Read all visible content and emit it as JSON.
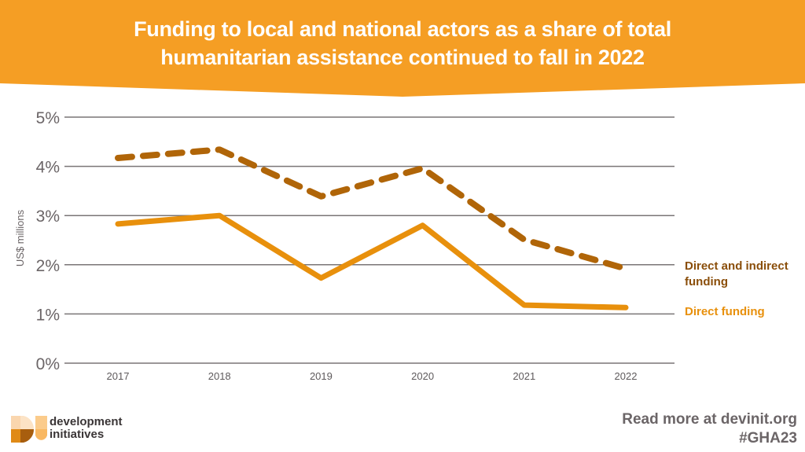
{
  "colors": {
    "banner": "#F59E24",
    "direct_and_indirect": "#B06508",
    "direct": "#E8900C",
    "grid": "#7a7576",
    "tick_text": "#6b6567"
  },
  "header": {
    "title_line1": "Funding to local and national actors as a share of total",
    "title_line2": "humanitarian assistance continued to fall in 2022"
  },
  "chart_data": {
    "type": "line",
    "title": "Funding to local and national actors as a share of total humanitarian assistance continued to fall in 2022",
    "xlabel": "",
    "ylabel": "US$ millions",
    "categories": [
      "2017",
      "2018",
      "2019",
      "2020",
      "2021",
      "2022"
    ],
    "yticks": [
      "0%",
      "1%",
      "2%",
      "3%",
      "4%",
      "5%"
    ],
    "ylim": [
      0,
      5
    ],
    "grid": true,
    "legend_placement": "right (inline labels at line ends)",
    "series": [
      {
        "name": "Direct and indirect funding",
        "style": "dashed",
        "values": [
          4.17,
          4.34,
          3.39,
          3.96,
          2.51,
          1.92
        ]
      },
      {
        "name": "Direct funding",
        "style": "solid",
        "values": [
          2.83,
          3.0,
          1.73,
          2.8,
          1.18,
          1.13
        ]
      }
    ]
  },
  "legend": {
    "direct_and_indirect_line1": "Direct and indirect",
    "direct_and_indirect_line2": "funding",
    "direct": "Direct funding"
  },
  "branding": {
    "logo_line1": "development",
    "logo_line2": "initiatives",
    "logo_icon": "development-initiatives-logo"
  },
  "footer": {
    "read_more": "Read more at devinit.org",
    "hashtag": "#GHA23"
  }
}
